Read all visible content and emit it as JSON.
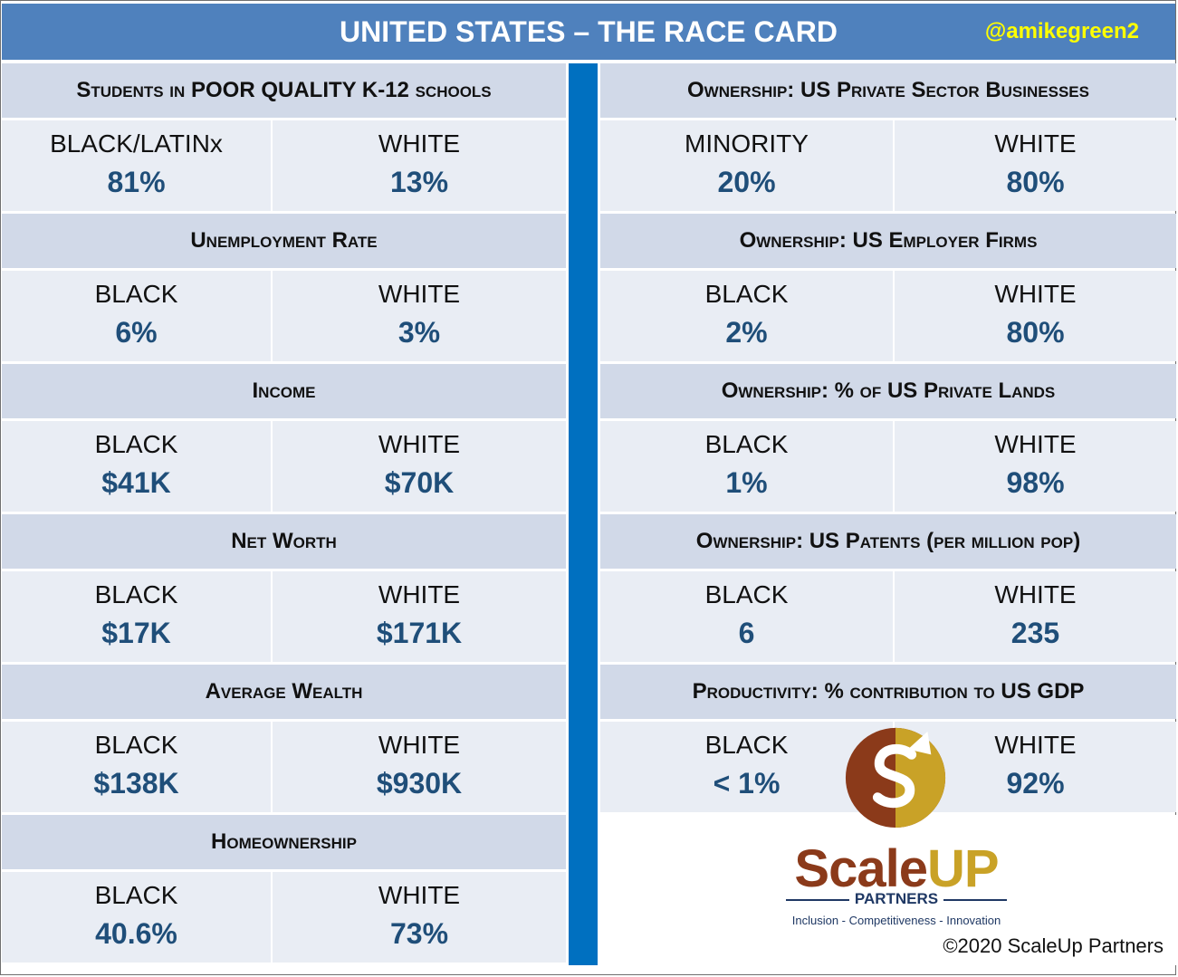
{
  "header": {
    "title": "UNITED STATES – THE RACE CARD",
    "handle": "@amikegreen2"
  },
  "left": [
    {
      "title": "Students in POOR QUALITY K-12 schools",
      "a_label": "BLACK/LATINx",
      "a_value": "81%",
      "b_label": "WHITE",
      "b_value": "13%"
    },
    {
      "title": "Unemployment Rate",
      "a_label": "BLACK",
      "a_value": "6%",
      "b_label": "WHITE",
      "b_value": "3%"
    },
    {
      "title": "Income",
      "a_label": "BLACK",
      "a_value": "$41K",
      "b_label": "WHITE",
      "b_value": "$70K"
    },
    {
      "title": "Net Worth",
      "a_label": "BLACK",
      "a_value": "$17K",
      "b_label": "WHITE",
      "b_value": "$171K"
    },
    {
      "title": "Average Wealth",
      "a_label": "BLACK",
      "a_value": "$138K",
      "b_label": "WHITE",
      "b_value": "$930K"
    },
    {
      "title": "Homeownership",
      "a_label": "BLACK",
      "a_value": "40.6%",
      "b_label": "WHITE",
      "b_value": "73%"
    }
  ],
  "right": [
    {
      "title": "Ownership: US Private Sector Businesses",
      "a_label": "MINORITY",
      "a_value": "20%",
      "b_label": "WHITE",
      "b_value": "80%"
    },
    {
      "title": "Ownership: US Employer Firms",
      "a_label": "BLACK",
      "a_value": "2%",
      "b_label": "WHITE",
      "b_value": "80%"
    },
    {
      "title": "Ownership: % of US Private Lands",
      "a_label": "BLACK",
      "a_value": "1%",
      "b_label": "WHITE",
      "b_value": "98%"
    },
    {
      "title": "Ownership: US Patents (per million pop)",
      "a_label": "BLACK",
      "a_value": "6",
      "b_label": "WHITE",
      "b_value": "235"
    },
    {
      "title": "Productivity: % contribution to US GDP",
      "a_label": "BLACK",
      "a_value": "< 1%",
      "b_label": "WHITE",
      "b_value": "92%"
    }
  ],
  "logo": {
    "brand_part1": "Scale",
    "brand_part2": "UP",
    "partners": "PARTNERS",
    "tagline": "Inclusion - Competitiveness - Innovation",
    "icon": "scaleup-s-arrow-logo"
  },
  "footer": {
    "copyright": "©2020 ScaleUp Partners"
  },
  "colors": {
    "title_bar": "#4f81bd",
    "divider": "#0070c0",
    "header_band": "#d1d9e8",
    "row_band": "#e9edf4",
    "value_text": "#1f4e79",
    "handle_text": "#ffff00"
  }
}
